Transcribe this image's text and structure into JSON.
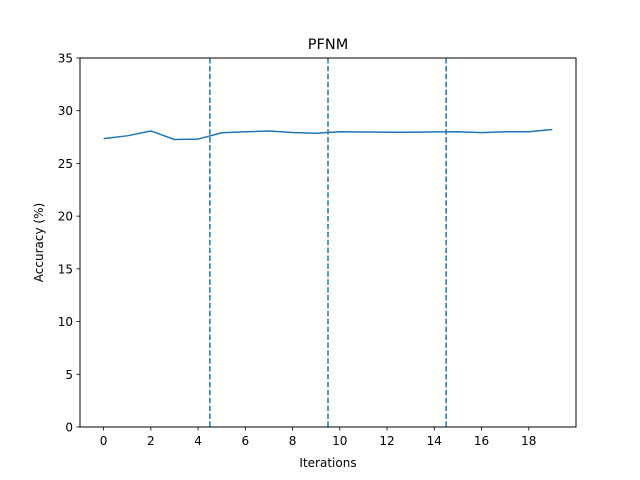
{
  "chart_data": {
    "type": "line",
    "title": "PFNM",
    "xlabel": "Iterations",
    "ylabel": "Accuracy (%)",
    "xlim": [
      -1,
      20
    ],
    "ylim": [
      0,
      35
    ],
    "xticks": [
      "0",
      "2",
      "4",
      "6",
      "8",
      "10",
      "12",
      "14",
      "16",
      "18"
    ],
    "yticks": [
      "0",
      "5",
      "10",
      "15",
      "20",
      "25",
      "30",
      "35"
    ],
    "grid": false,
    "series": [
      {
        "x": [
          0,
          1,
          2,
          3,
          4,
          5,
          6,
          7,
          8,
          9,
          10,
          11,
          12,
          13,
          14,
          15,
          16,
          17,
          18,
          19
        ],
        "values": [
          27.35,
          27.62,
          28.08,
          27.27,
          27.31,
          27.91,
          28.0,
          28.08,
          27.93,
          27.86,
          28.0,
          27.98,
          27.96,
          27.96,
          27.99,
          28.01,
          27.92,
          28.0,
          28.0,
          28.22
        ],
        "color": "#1f77b4"
      }
    ],
    "vlines": {
      "x": [
        4.5,
        9.5,
        14.5
      ],
      "style": "dashed",
      "color": "#1f77b4"
    }
  }
}
